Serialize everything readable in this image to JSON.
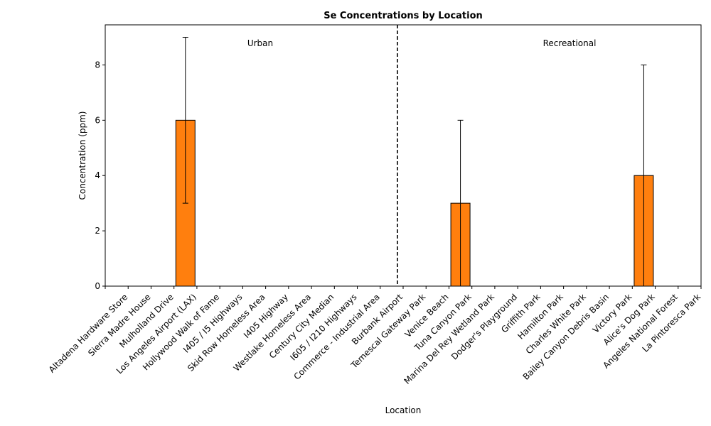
{
  "chart_data": {
    "type": "bar",
    "title": "Se Concentrations by Location",
    "xlabel": "Location",
    "ylabel": "Concentration (ppm)",
    "ylim": [
      0,
      9.45
    ],
    "yticks": [
      0,
      2,
      4,
      6,
      8
    ],
    "grid": false,
    "bar_color": "#ff7f0e",
    "categories": [
      "Altadena Hardware Store",
      "Sierra Madre House",
      "Mulholland Drive",
      "Los Angeles Airport (LAX)",
      "Hollywood Walk of Fame",
      "I405 / I5 Highways",
      "Skid Row Homeless Area",
      "I405 Highway",
      "Westlake Homeless Area",
      "Century City Median",
      "I605 / I210 Highways",
      "Commerce - Industrial Area",
      "Burbank Airport",
      "Temescal Gateway Park",
      "Venice Beach",
      "Tuna Canyon Park",
      "Marina Del Rey Wetland Park",
      "Dodger's Playground",
      "Griffith Park",
      "Hamilton Park",
      "Charles White Park",
      "Bailey Canyon Debris Basin",
      "Victory Park",
      "Alice's Dog Park",
      "Angeles National Forest",
      "La Pintoresca Park"
    ],
    "values": [
      0,
      0,
      0,
      6,
      0,
      0,
      0,
      0,
      0,
      0,
      0,
      0,
      0,
      0,
      0,
      3,
      0,
      0,
      0,
      0,
      0,
      0,
      0,
      4,
      0,
      0
    ],
    "error_high": [
      0,
      0,
      0,
      9,
      0,
      0,
      0,
      0,
      0,
      0,
      0,
      0,
      0,
      0,
      0,
      6,
      0,
      0,
      0,
      0,
      0,
      0,
      0,
      8,
      0,
      0
    ],
    "error_low": [
      0,
      0,
      0,
      3,
      0,
      0,
      0,
      0,
      0,
      0,
      0,
      0,
      0,
      0,
      0,
      0,
      0,
      0,
      0,
      0,
      0,
      0,
      0,
      0,
      0,
      0
    ],
    "divider_after_category": "Burbank Airport",
    "annotations": [
      "Urban",
      "Recreational"
    ]
  }
}
